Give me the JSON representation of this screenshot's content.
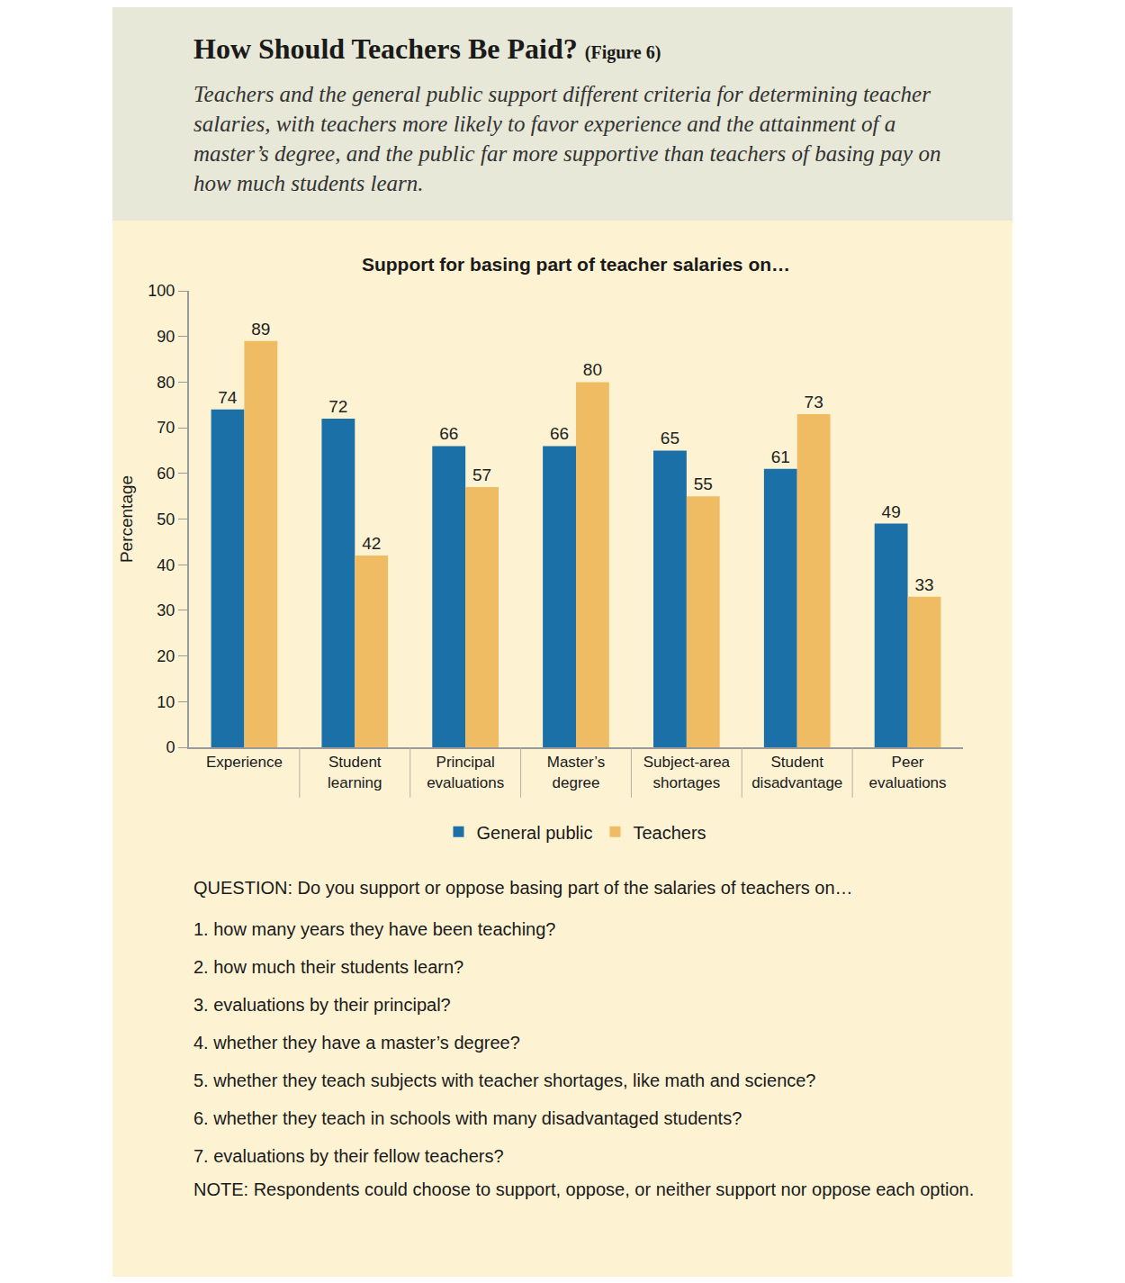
{
  "header": {
    "title": "How Should Teachers Be Paid?",
    "figure_label": "(Figure 6)",
    "subtitle": "Teachers and the general public support different criteria for determining teacher salaries, with teachers more likely to favor experience and the attainment of a master’s degree, and the public far more supportive than teachers of basing pay on how much students learn."
  },
  "chart_data": {
    "type": "bar",
    "title": "Support for basing part of teacher salaries on…",
    "categories": [
      "Experience",
      "Student learning",
      "Principal evaluations",
      "Master’s degree",
      "Subject-area shortages",
      "Student disadvantage",
      "Peer evaluations"
    ],
    "series": [
      {
        "name": "General public",
        "color": "#1b70a8",
        "values": [
          74,
          72,
          66,
          66,
          65,
          61,
          49
        ]
      },
      {
        "name": "Teachers",
        "color": "#f0bc63",
        "values": [
          89,
          42,
          57,
          80,
          55,
          73,
          33
        ]
      }
    ],
    "y_label": "Percentage",
    "ylim": [
      0,
      100
    ],
    "yticks": [
      0,
      10,
      20,
      30,
      40,
      50,
      60,
      70,
      80,
      90,
      100
    ],
    "grid": false,
    "legend": "bottom",
    "data_labels": true
  },
  "question": {
    "text": "QUESTION: Do you support or oppose basing part of the salaries of teachers on…",
    "items": [
      "1. how many years they have been teaching?",
      "2. how much their students learn?",
      "3. evaluations by their principal?",
      "4. whether they have a master’s degree?",
      "5. whether they teach subjects with teacher shortages, like math and science?",
      "6. whether they teach in schools with many disadvantaged students?",
      "7. evaluations by their fellow teachers?"
    ],
    "note": "NOTE: Respondents could choose to support, oppose, or neither support nor oppose each option."
  }
}
